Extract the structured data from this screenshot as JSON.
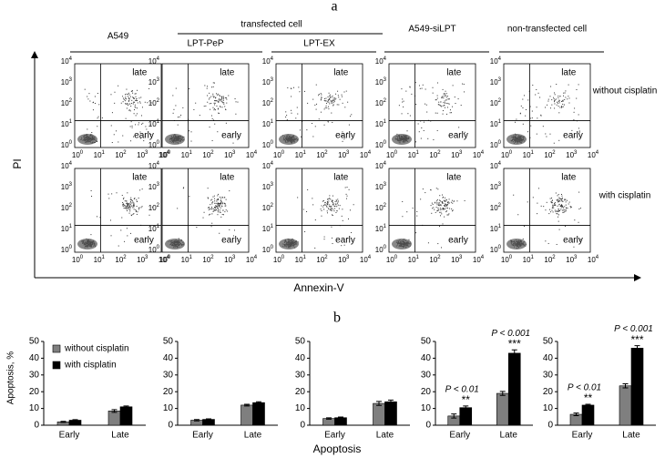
{
  "panel_a": {
    "label": "a",
    "group_header": "transfected cell",
    "columns": [
      "A549",
      "LPT-PeP",
      "LPT-EX",
      "A549-siLPT",
      "non-transfected cell"
    ],
    "rows": [
      "without cisplatin",
      "with cisplatin"
    ],
    "y_axis_label": "PI",
    "x_axis_label": "Annexin-V",
    "quadrant_labels": {
      "upper": "late",
      "lower": "early"
    },
    "tick_base": "10",
    "tick_exponents": [
      "0",
      "1",
      "2",
      "3",
      "4"
    ]
  },
  "panel_b": {
    "label": "b",
    "xlabel": "Apoptosis",
    "ylabel": "Apoptosis, %"
  },
  "chart_data": [
    {
      "type": "bar",
      "categories": [
        "Early",
        "Late"
      ],
      "ylim": [
        0,
        50
      ],
      "yticks": [
        0,
        10,
        20,
        30,
        40,
        50
      ],
      "legend": "upper left",
      "series": [
        {
          "name": "without cisplatin",
          "color": "#7f7f7f",
          "values": [
            2,
            8.5
          ],
          "errors": [
            0.3,
            0.8
          ]
        },
        {
          "name": "with cisplatin",
          "color": "#000000",
          "values": [
            3,
            11
          ],
          "errors": [
            0.3,
            0.5
          ]
        }
      ]
    },
    {
      "type": "bar",
      "categories": [
        "Early",
        "Late"
      ],
      "ylim": [
        0,
        50
      ],
      "yticks": [
        0,
        10,
        20,
        30,
        40,
        50
      ],
      "series": [
        {
          "color": "#7f7f7f",
          "values": [
            3,
            12
          ],
          "errors": [
            0.4,
            0.5
          ]
        },
        {
          "color": "#000000",
          "values": [
            3.5,
            13.5
          ],
          "errors": [
            0.3,
            0.5
          ]
        }
      ]
    },
    {
      "type": "bar",
      "categories": [
        "Early",
        "Late"
      ],
      "ylim": [
        0,
        50
      ],
      "yticks": [
        0,
        10,
        20,
        30,
        40,
        50
      ],
      "series": [
        {
          "color": "#7f7f7f",
          "values": [
            4,
            13
          ],
          "errors": [
            0.4,
            1.2
          ]
        },
        {
          "color": "#000000",
          "values": [
            4.5,
            14
          ],
          "errors": [
            0.4,
            1
          ]
        }
      ]
    },
    {
      "type": "bar",
      "categories": [
        "Early",
        "Late"
      ],
      "ylim": [
        0,
        50
      ],
      "yticks": [
        0,
        10,
        20,
        30,
        40,
        50
      ],
      "annotations": [
        "P < 0.01",
        "P < 0.001"
      ],
      "significance": [
        "**",
        "***"
      ],
      "series": [
        {
          "color": "#7f7f7f",
          "values": [
            5.5,
            19
          ],
          "errors": [
            1.2,
            1.2
          ]
        },
        {
          "color": "#000000",
          "values": [
            10.5,
            43
          ],
          "errors": [
            1,
            2
          ]
        }
      ]
    },
    {
      "type": "bar",
      "categories": [
        "Early",
        "Late"
      ],
      "ylim": [
        0,
        50
      ],
      "yticks": [
        0,
        10,
        20,
        30,
        40,
        50
      ],
      "annotations": [
        "P < 0.01",
        "P < 0.001"
      ],
      "significance": [
        "**",
        "***"
      ],
      "series": [
        {
          "color": "#7f7f7f",
          "values": [
            6.5,
            23.5
          ],
          "errors": [
            0.8,
            1.2
          ]
        },
        {
          "color": "#000000",
          "values": [
            12,
            46
          ],
          "errors": [
            0.5,
            1.5
          ]
        }
      ]
    }
  ]
}
